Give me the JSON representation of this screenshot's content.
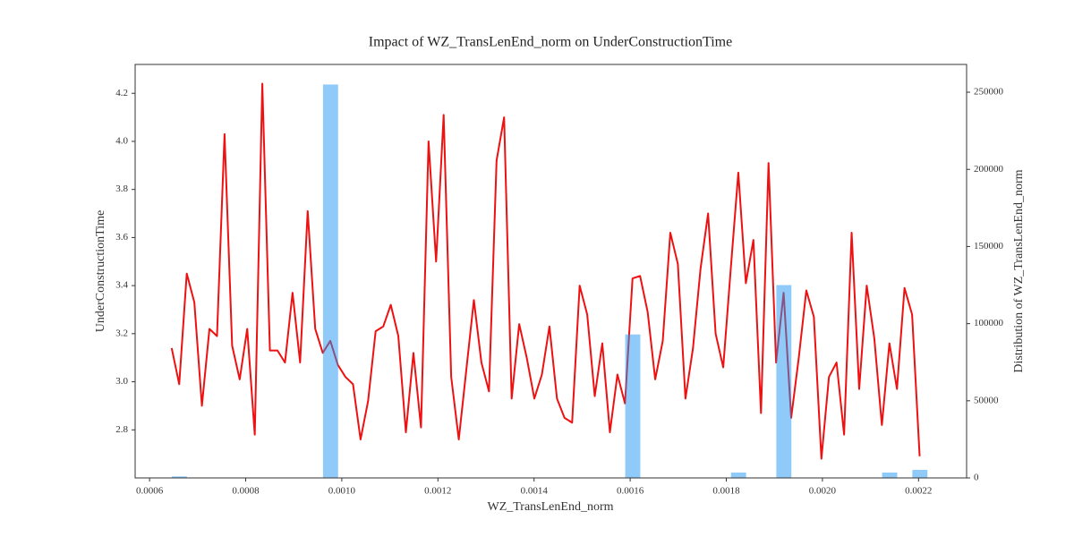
{
  "chart_data": {
    "type": "line",
    "title": "Impact of WZ_TransLenEnd_norm on UnderConstructionTime",
    "xlabel": "WZ_TransLenEnd_norm",
    "ylabel": "UnderConstructionTime",
    "y2label": "Distribution of WZ_TransLenEnd_norm",
    "xlim": [
      0.00057,
      0.0023
    ],
    "xticks": [
      0.0006,
      0.0008,
      {
        "value": 0.001,
        "label": "0.0010"
      },
      0.0012,
      0.0014,
      0.0016,
      0.0018,
      {
        "value": 0.002,
        "label": "0.0020"
      },
      0.0022
    ],
    "ylim": [
      2.6,
      4.32
    ],
    "yticks": [
      2.8,
      {
        "value": 3,
        "label": "3.0"
      },
      3.2,
      3.4,
      3.6,
      3.8,
      {
        "value": 4,
        "label": "4.0"
      },
      4.2
    ],
    "y2lim": [
      0,
      268000
    ],
    "y2ticks": [
      0,
      50000,
      100000,
      150000,
      200000,
      250000
    ],
    "series": [
      {
        "type": "line",
        "color": "#ee1111",
        "x": [
          0.000646,
          0.0006617,
          0.0006774,
          0.0006932,
          0.0007089,
          0.0007246,
          0.0007403,
          0.000756,
          0.0007718,
          0.0007875,
          0.0008032,
          0.0008189,
          0.0008346,
          0.0008504,
          0.0008661,
          0.0008818,
          0.0008975,
          0.0009132,
          0.000929,
          0.0009447,
          0.0009604,
          0.0009761,
          0.0009918,
          0.0010076,
          0.0010233,
          0.001039,
          0.0010547,
          0.0010704,
          0.0010862,
          0.0011019,
          0.0011176,
          0.0011333,
          0.001149,
          0.0011648,
          0.0011805,
          0.0011962,
          0.0012119,
          0.0012276,
          0.0012434,
          0.0012591,
          0.0012748,
          0.0012905,
          0.0013062,
          0.001322,
          0.0013377,
          0.0013534,
          0.0013691,
          0.0013848,
          0.0014006,
          0.0014163,
          0.001432,
          0.0014477,
          0.0014634,
          0.0014792,
          0.0014949,
          0.0015106,
          0.0015263,
          0.001542,
          0.0015578,
          0.0015735,
          0.0015892,
          0.0016049,
          0.0016206,
          0.0016364,
          0.0016521,
          0.0016678,
          0.0016835,
          0.0016992,
          0.001715,
          0.0017307,
          0.0017464,
          0.0017621,
          0.0017778,
          0.0017936,
          0.0018093,
          0.001825,
          0.0018407,
          0.0018564,
          0.0018722,
          0.0018879,
          0.0019036,
          0.0019193,
          0.001935,
          0.0019508,
          0.0019665,
          0.0019822,
          0.0019979,
          0.0020136,
          0.0020294,
          0.0020451,
          0.0020608,
          0.0020765,
          0.0020922,
          0.002108,
          0.0021237,
          0.0021394,
          0.0021551,
          0.0021708,
          0.0021866,
          0.0022023
        ],
        "values": [
          3.14,
          2.99,
          3.45,
          3.33,
          2.9,
          3.22,
          3.19,
          4.03,
          3.15,
          3.01,
          3.22,
          2.78,
          4.24,
          3.13,
          3.13,
          3.08,
          3.37,
          3.08,
          3.71,
          3.22,
          3.12,
          3.17,
          3.07,
          3.02,
          2.99,
          2.76,
          2.92,
          3.21,
          3.23,
          3.32,
          3.19,
          2.79,
          3.12,
          2.81,
          4.0,
          3.5,
          4.11,
          3.02,
          2.76,
          3.05,
          3.34,
          3.08,
          2.96,
          3.92,
          4.1,
          2.93,
          3.24,
          3.1,
          2.93,
          3.03,
          3.23,
          2.93,
          2.85,
          2.83,
          3.4,
          3.28,
          2.94,
          3.16,
          2.79,
          3.03,
          2.91,
          3.43,
          3.44,
          3.29,
          3.01,
          3.17,
          3.62,
          3.49,
          2.93,
          3.14,
          3.47,
          3.7,
          3.2,
          3.06,
          3.47,
          3.87,
          3.41,
          3.59,
          2.87,
          3.91,
          3.08,
          3.37,
          2.85,
          3.1,
          3.38,
          3.27,
          2.68,
          3.02,
          3.08,
          2.78,
          3.62,
          2.97,
          3.4,
          3.18,
          2.82,
          3.16,
          2.97,
          3.39,
          3.28,
          2.69
        ]
      },
      {
        "type": "histogram",
        "color": "#2196f3",
        "axis": "y2",
        "bins": [
          0.0006465,
          0.0006779,
          0.0007094,
          0.0007408,
          0.0007723,
          0.0008037,
          0.0008351,
          0.0008666,
          0.000898,
          0.0009295,
          0.0009609,
          0.0009923,
          0.0010238,
          0.0010552,
          0.0010867,
          0.0011181,
          0.0011495,
          0.001181,
          0.0012124,
          0.0012439,
          0.0012753,
          0.0013067,
          0.0013382,
          0.0013696,
          0.0014011,
          0.0014325,
          0.0014639,
          0.0014954,
          0.0015268,
          0.0015583,
          0.0015897,
          0.0016211,
          0.0016526,
          0.001684,
          0.0017155,
          0.0017469,
          0.0017783,
          0.0018098,
          0.0018412,
          0.0018727,
          0.0019041,
          0.0019355,
          0.001967,
          0.0019984,
          0.0020299,
          0.0020613,
          0.0020927,
          0.0021242,
          0.0021556,
          0.0021871,
          0.0022185
        ],
        "counts": [
          1000,
          0,
          0,
          0,
          0,
          0,
          0,
          0,
          0,
          0,
          255000,
          0,
          0,
          0,
          0,
          0,
          0,
          0,
          0,
          0,
          0,
          0,
          0,
          0,
          0,
          0,
          0,
          0,
          0,
          0,
          93000,
          0,
          0,
          0,
          0,
          0,
          0,
          3500,
          0,
          0,
          125000,
          0,
          0,
          0,
          0,
          0,
          0,
          3500,
          0,
          5200
        ]
      }
    ]
  }
}
